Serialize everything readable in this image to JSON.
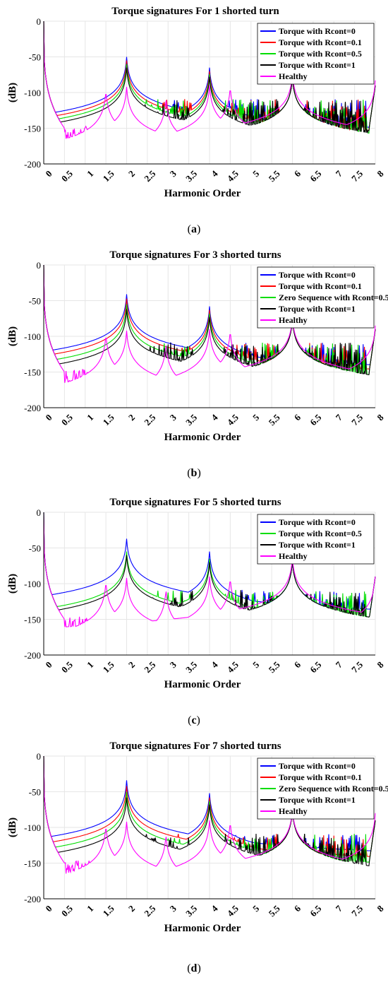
{
  "chart_data": [
    {
      "type": "line",
      "title": "Torque signatures For 1 shorted turn",
      "xlabel": "Harmonic Order",
      "ylabel": "(dB)",
      "xlim": [
        0,
        8
      ],
      "ylim": [
        -200,
        0
      ],
      "xticks": [
        "0",
        "0.5",
        "1",
        "1.5",
        "2",
        "2.5",
        "3",
        "3.5",
        "4",
        "4.5",
        "5",
        "5.5",
        "6",
        "6.5",
        "7",
        "7.5",
        "8"
      ],
      "yticks": [
        "0",
        "-50",
        "-100",
        "-150",
        "-200"
      ],
      "grid": true,
      "legend_position": "top-right",
      "caption_label": "a",
      "series": [
        {
          "name": "Torque with Rcont=0",
          "color": "#0000ff",
          "peaks": [
            [
              2,
              -50
            ],
            [
              4,
              -65
            ],
            [
              6,
              -78
            ]
          ]
        },
        {
          "name": "Torque with Rcont=0.1",
          "color": "#ff0000",
          "peaks": [
            [
              2,
              -55
            ],
            [
              4,
              -70
            ],
            [
              6,
              -78
            ]
          ]
        },
        {
          "name": "Torque with Rcont=0.5",
          "color": "#00dd00",
          "peaks": [
            [
              2,
              -60
            ],
            [
              4,
              -74
            ],
            [
              6,
              -78
            ]
          ]
        },
        {
          "name": "Torque with Rcont=1",
          "color": "#000000",
          "peaks": [
            [
              2,
              -65
            ],
            [
              4,
              -78
            ],
            [
              6,
              -78
            ]
          ]
        },
        {
          "name": "Healthy",
          "color": "#ff00ff",
          "peaks": [
            [
              1.5,
              -97
            ],
            [
              2,
              -92
            ],
            [
              2.95,
              -108
            ],
            [
              4,
              -90
            ],
            [
              4.5,
              -92
            ],
            [
              6,
              -72
            ],
            [
              8,
              -83
            ]
          ]
        }
      ]
    },
    {
      "type": "line",
      "title": "Torque signatures For 3 shorted turns",
      "xlabel": "Harmonic Order",
      "ylabel": "(dB)",
      "xlim": [
        0,
        8
      ],
      "ylim": [
        -200,
        0
      ],
      "xticks": [
        "0",
        "0.5",
        "1",
        "1.5",
        "2",
        "2.5",
        "3",
        "3.5",
        "4",
        "4.5",
        "5",
        "5.5",
        "6",
        "6.5",
        "7",
        "7.5",
        "8"
      ],
      "yticks": [
        "0",
        "-50",
        "-100",
        "-150",
        "-200"
      ],
      "grid": true,
      "legend_position": "top-right",
      "caption_label": "b",
      "series": [
        {
          "name": "Torque with Rcont=0",
          "color": "#0000ff",
          "peaks": [
            [
              2,
              -41
            ],
            [
              4,
              -58
            ],
            [
              6,
              -75
            ]
          ]
        },
        {
          "name": "Torque with Rcont=0.1",
          "color": "#ff0000",
          "peaks": [
            [
              2,
              -47
            ],
            [
              4,
              -63
            ],
            [
              6,
              -75
            ]
          ]
        },
        {
          "name": "Zero Sequence with Rcont=0.5",
          "color": "#00dd00",
          "peaks": [
            [
              2,
              -55
            ],
            [
              4,
              -68
            ],
            [
              6,
              -75
            ]
          ]
        },
        {
          "name": "Torque with Rcont=1",
          "color": "#000000",
          "peaks": [
            [
              2,
              -62
            ],
            [
              4,
              -73
            ],
            [
              6,
              -75
            ]
          ]
        },
        {
          "name": "Healthy",
          "color": "#ff00ff",
          "peaks": [
            [
              1.5,
              -97
            ],
            [
              2,
              -92
            ],
            [
              2.95,
              -110
            ],
            [
              4,
              -90
            ],
            [
              4.5,
              -92
            ],
            [
              6,
              -72
            ],
            [
              8,
              -85
            ]
          ]
        }
      ]
    },
    {
      "type": "line",
      "title": "Torque signatures For 5 shorted turns",
      "xlabel": "Harmonic Order",
      "ylabel": "(dB)",
      "xlim": [
        0,
        8
      ],
      "ylim": [
        -200,
        0
      ],
      "xticks": [
        "0",
        "0.5",
        "1",
        "1.5",
        "2",
        "2.5",
        "3",
        "3.5",
        "4",
        "4.5",
        "5",
        "5.5",
        "6",
        "6.5",
        "7",
        "7.5",
        "8"
      ],
      "yticks": [
        "0",
        "-50",
        "-100",
        "-150",
        "-200"
      ],
      "grid": true,
      "legend_position": "top-right",
      "caption_label": "c",
      "series": [
        {
          "name": "Torque with Rcont=0",
          "color": "#0000ff",
          "peaks": [
            [
              2,
              -37
            ],
            [
              4,
              -55
            ],
            [
              6,
              -68
            ]
          ]
        },
        {
          "name": "Torque with Rcont=0.5",
          "color": "#00dd00",
          "peaks": [
            [
              2,
              -55
            ],
            [
              4,
              -65
            ],
            [
              6,
              -68
            ]
          ]
        },
        {
          "name": "Torque with Rcont=1",
          "color": "#000000",
          "peaks": [
            [
              2,
              -60
            ],
            [
              4,
              -70
            ],
            [
              6,
              -68
            ]
          ]
        },
        {
          "name": "Healthy",
          "color": "#ff00ff",
          "peaks": [
            [
              1.5,
              -97
            ],
            [
              2,
              -92
            ],
            [
              2.95,
              -108
            ],
            [
              4,
              -90
            ],
            [
              4.5,
              -92
            ],
            [
              6,
              -63
            ],
            [
              8,
              -90
            ]
          ]
        }
      ]
    },
    {
      "type": "line",
      "title": "Torque signatures For 7 shorted turns",
      "xlabel": "Harmonic Order",
      "ylabel": "(dB)",
      "xlim": [
        0,
        8
      ],
      "ylim": [
        -200,
        0
      ],
      "xticks": [
        "0",
        "0.5",
        "1",
        "1.5",
        "2",
        "2.5",
        "3",
        "3.5",
        "4",
        "4.5",
        "5",
        "5.5",
        "6",
        "6.5",
        "7",
        "7.5",
        "8"
      ],
      "yticks": [
        "0",
        "-50",
        "-100",
        "-150",
        "-200"
      ],
      "grid": true,
      "legend_position": "top-right",
      "caption_label": "d",
      "series": [
        {
          "name": "Torque with Rcont=0",
          "color": "#0000ff",
          "peaks": [
            [
              2,
              -34
            ],
            [
              4,
              -52
            ],
            [
              6,
              -75
            ]
          ]
        },
        {
          "name": "Torque with Rcont=0.1",
          "color": "#ff0000",
          "peaks": [
            [
              2,
              -42
            ],
            [
              4,
              -58
            ],
            [
              6,
              -75
            ]
          ]
        },
        {
          "name": "Zero Sequence with Rcont=0.5",
          "color": "#00dd00",
          "peaks": [
            [
              2,
              -50
            ],
            [
              4,
              -63
            ],
            [
              6,
              -75
            ]
          ]
        },
        {
          "name": "Torque with Rcont=1",
          "color": "#000000",
          "peaks": [
            [
              2,
              -58
            ],
            [
              4,
              -68
            ],
            [
              6,
              -75
            ]
          ]
        },
        {
          "name": "Healthy",
          "color": "#ff00ff",
          "peaks": [
            [
              1.5,
              -97
            ],
            [
              2,
              -92
            ],
            [
              2.95,
              -110
            ],
            [
              4,
              -90
            ],
            [
              4.5,
              -92
            ],
            [
              6,
              -73
            ],
            [
              8,
              -80
            ]
          ]
        }
      ]
    }
  ]
}
